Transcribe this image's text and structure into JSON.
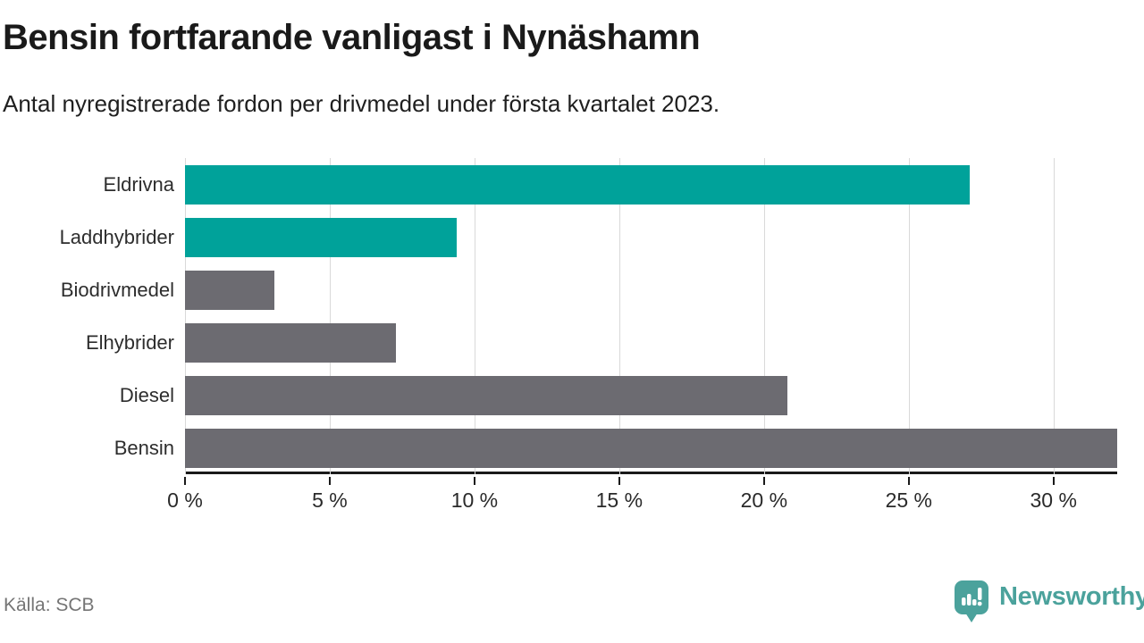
{
  "header": {
    "title": "Bensin fortfarande vanligast i Nynäshamn",
    "subtitle": "Antal nyregistrerade fordon per drivmedel under första kvartalet 2023."
  },
  "footer": {
    "source": "Källa: SCB",
    "brand": "Newsworthy"
  },
  "colors": {
    "highlight_teal": "#00a29a",
    "neutral_gray": "#6c6b71",
    "grid": "#d9d9d9",
    "axis": "#1a1a1a",
    "logo_teal": "#4ba29c"
  },
  "chart_data": {
    "type": "bar",
    "orientation": "horizontal",
    "title": "Bensin fortfarande vanligast i Nynäshamn",
    "subtitle": "Antal nyregistrerade fordon per drivmedel under första kvartalet 2023.",
    "categories": [
      "Eldrivna",
      "Laddhybrider",
      "Biodrivmedel",
      "Elhybrider",
      "Diesel",
      "Bensin"
    ],
    "values": [
      27.1,
      9.4,
      3.1,
      7.3,
      20.8,
      32.2
    ],
    "unit": "%",
    "bar_colors": [
      "#00a29a",
      "#00a29a",
      "#6c6b71",
      "#6c6b71",
      "#6c6b71",
      "#6c6b71"
    ],
    "xlim": [
      0,
      32.2
    ],
    "xticks": [
      0,
      5,
      10,
      15,
      20,
      25,
      30
    ],
    "xtick_labels": [
      "0 %",
      "5 %",
      "10 %",
      "15 %",
      "20 %",
      "25 %",
      "30 %"
    ],
    "grid": true,
    "legend": false,
    "source": "Källa: SCB"
  }
}
